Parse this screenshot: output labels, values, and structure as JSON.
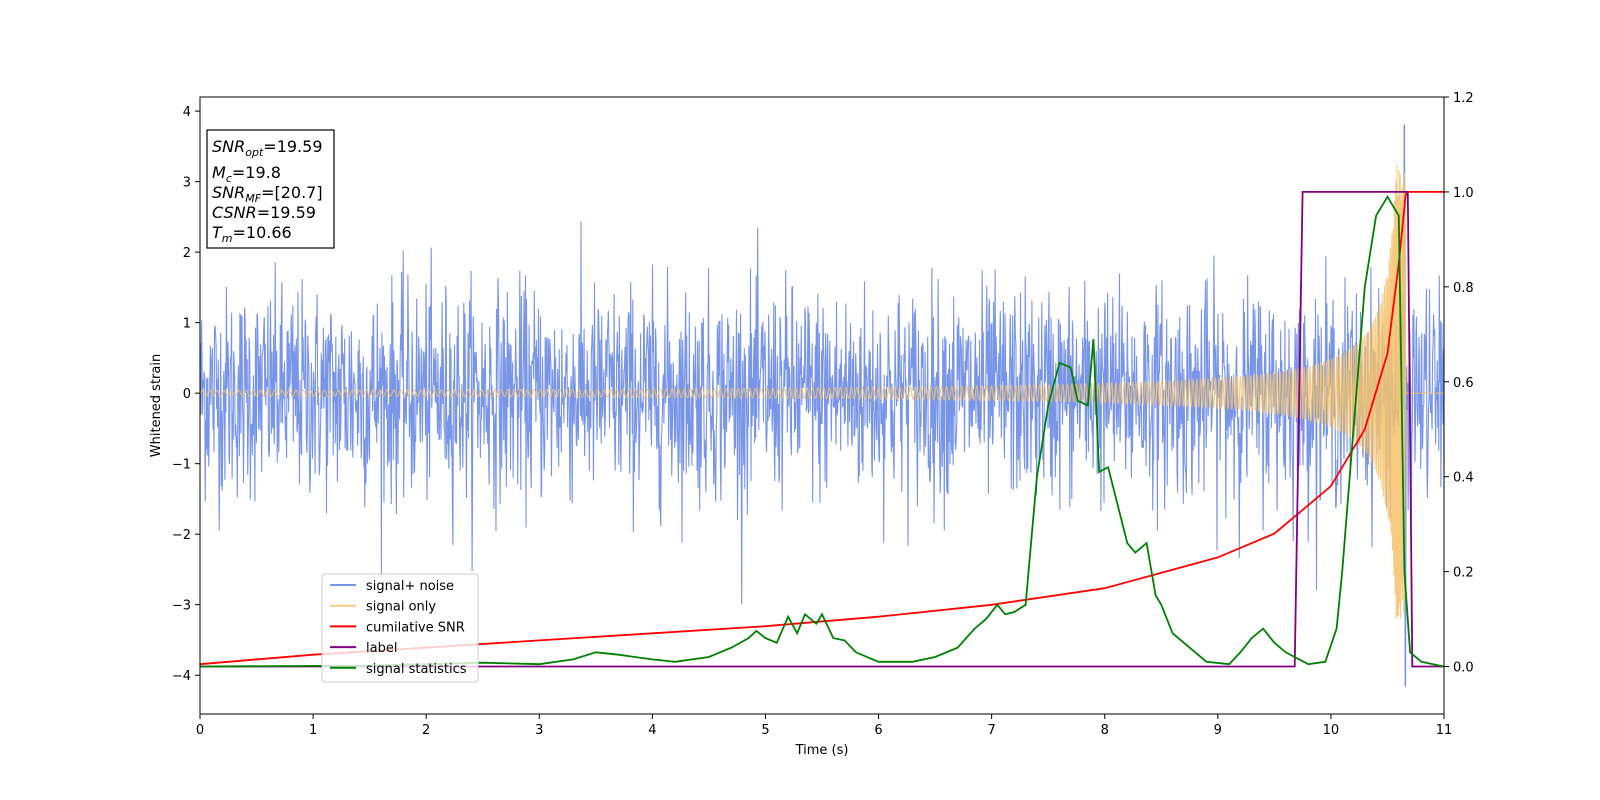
{
  "chart_data": {
    "type": "line",
    "xlabel": "Time (s)",
    "ylabel": "Whitened strain",
    "xlim": [
      0,
      11
    ],
    "ylim": [
      -4.55,
      4.2
    ],
    "y2lim": [
      -0.1,
      1.2
    ],
    "x_ticks": [
      0,
      1,
      2,
      3,
      4,
      5,
      6,
      7,
      8,
      9,
      10,
      11
    ],
    "x_tick_labels": [
      "0",
      "1",
      "2",
      "3",
      "4",
      "5",
      "6",
      "7",
      "8",
      "9",
      "10",
      "11"
    ],
    "y_ticks": [
      -4,
      -3,
      -2,
      -1,
      0,
      1,
      2,
      3,
      4
    ],
    "y_tick_labels": [
      "−4",
      "−3",
      "−2",
      "−1",
      "0",
      "1",
      "2",
      "3",
      "4"
    ],
    "y2_ticks": [
      0.0,
      0.2,
      0.4,
      0.6,
      0.8,
      1.0,
      1.2
    ],
    "y2_tick_labels": [
      "0.0",
      "0.2",
      "0.4",
      "0.6",
      "0.8",
      "1.0",
      "1.2"
    ],
    "legend_location": "lower-left",
    "info_box": [
      {
        "base": "SNR",
        "sub": "opt",
        "rest": "=19.59"
      },
      {
        "base": "M",
        "sub": "c",
        "rest": "=19.8"
      },
      {
        "base": "SNR",
        "sub": "MF",
        "rest": "=[20.7]"
      },
      {
        "base": "CSNR",
        "sub": "",
        "rest": "=19.59"
      },
      {
        "base": "T",
        "sub": "m",
        "rest": "=10.66"
      }
    ],
    "noise": {
      "typical_amplitude": 1.2,
      "max": 3.8,
      "min": -4.15,
      "max_time": 10.65
    },
    "chirp": {
      "merger_time": 10.66,
      "peak_amplitude": 3.25,
      "early_amplitude": 0.04
    },
    "series": [
      {
        "name": "signal+ noise",
        "axis": "left",
        "color": "#7895e8"
      },
      {
        "name": "signal only",
        "axis": "left",
        "color": "#f5c26b"
      },
      {
        "name": "cumilative SNR",
        "axis": "right",
        "color": "#ff0000",
        "x": [
          0,
          1,
          2,
          3,
          4,
          5,
          6,
          7,
          8,
          9,
          9.5,
          10,
          10.3,
          10.5,
          10.6,
          10.66,
          10.67,
          11
        ],
        "y": [
          0.005,
          0.025,
          0.04,
          0.055,
          0.07,
          0.085,
          0.105,
          0.13,
          0.165,
          0.23,
          0.28,
          0.38,
          0.5,
          0.66,
          0.85,
          0.99,
          1.0,
          1.0
        ]
      },
      {
        "name": "label",
        "axis": "right",
        "color": "#800080",
        "x": [
          0,
          9.68,
          9.75,
          10.68,
          10.72,
          11
        ],
        "y": [
          0,
          0,
          1,
          1,
          0,
          0
        ]
      },
      {
        "name": "signal statistics",
        "axis": "right",
        "color": "#008000",
        "x": [
          0,
          1.5,
          2,
          2.5,
          3,
          3.3,
          3.5,
          3.7,
          4,
          4.2,
          4.5,
          4.7,
          4.85,
          4.92,
          5,
          5.1,
          5.2,
          5.28,
          5.35,
          5.45,
          5.5,
          5.6,
          5.7,
          5.8,
          6,
          6.3,
          6.5,
          6.7,
          6.85,
          6.95,
          7.05,
          7.12,
          7.2,
          7.3,
          7.4,
          7.5,
          7.6,
          7.7,
          7.76,
          7.85,
          7.9,
          7.95,
          8.03,
          8.2,
          8.27,
          8.37,
          8.45,
          8.5,
          8.6,
          8.7,
          8.8,
          8.9,
          9.1,
          9.2,
          9.3,
          9.4,
          9.5,
          9.6,
          9.8,
          9.95,
          10.05,
          10.1,
          10.2,
          10.3,
          10.4,
          10.5,
          10.6,
          10.65,
          10.7,
          10.8,
          11
        ],
        "y": [
          0,
          0.002,
          0.005,
          0.008,
          0.005,
          0.015,
          0.03,
          0.025,
          0.015,
          0.01,
          0.02,
          0.04,
          0.06,
          0.075,
          0.06,
          0.05,
          0.105,
          0.07,
          0.11,
          0.09,
          0.11,
          0.06,
          0.055,
          0.03,
          0.01,
          0.01,
          0.02,
          0.04,
          0.08,
          0.1,
          0.13,
          0.11,
          0.115,
          0.13,
          0.4,
          0.55,
          0.64,
          0.63,
          0.56,
          0.55,
          0.69,
          0.41,
          0.42,
          0.26,
          0.24,
          0.26,
          0.15,
          0.13,
          0.07,
          0.05,
          0.03,
          0.01,
          0.005,
          0.03,
          0.06,
          0.08,
          0.05,
          0.03,
          0.005,
          0.01,
          0.08,
          0.2,
          0.5,
          0.8,
          0.95,
          0.99,
          0.95,
          0.2,
          0.03,
          0.01,
          0.0
        ]
      }
    ]
  }
}
